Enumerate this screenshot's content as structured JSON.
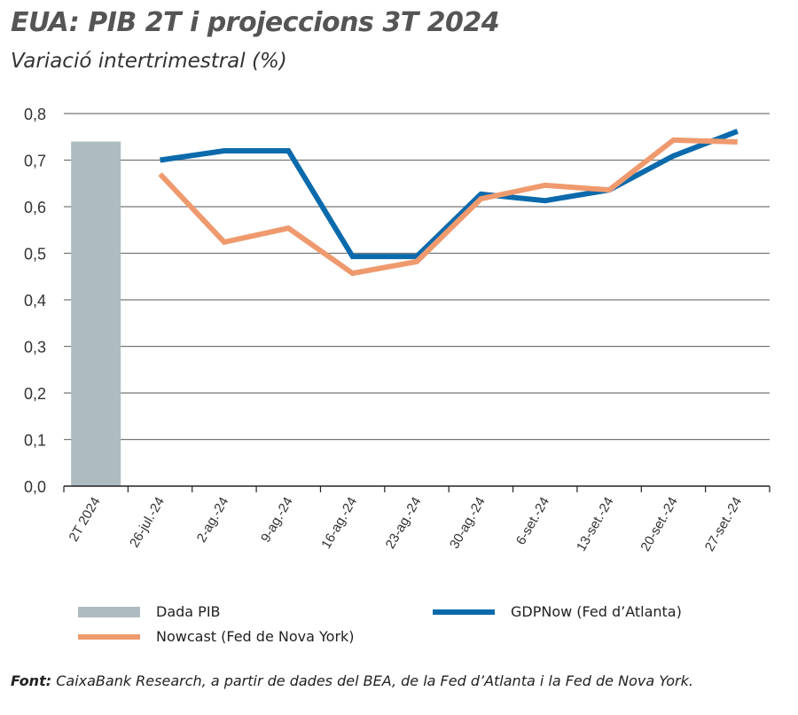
{
  "chart_data": {
    "type": "bar+line",
    "title": "EUA: PIB 2T i projeccions 3T 2024",
    "subtitle": "Variació intertrimestral (%)",
    "categories": [
      "2T 2024",
      "26-jul.-24",
      "2-ag.-24",
      "9-ag.-24",
      "16-ag.-24",
      "23-ag.-24",
      "30-ag.-24",
      "6-set.-24",
      "13-set.-24",
      "20-set.-24",
      "27-set.-24"
    ],
    "ylim": [
      0,
      0.8
    ],
    "yticks": [
      "0,0",
      "0,1",
      "0,2",
      "0,3",
      "0,4",
      "0,5",
      "0,6",
      "0,7",
      "0,8"
    ],
    "grid": true,
    "legend_position": "bottom",
    "series": [
      {
        "name": "Dada PIB",
        "kind": "bar",
        "color": "#aebbc1",
        "values": [
          0.74,
          null,
          null,
          null,
          null,
          null,
          null,
          null,
          null,
          null,
          null
        ]
      },
      {
        "name": "GDPNow (Fed d’Atlanta)",
        "kind": "line",
        "color": "#0b6aab",
        "values": [
          null,
          0.7,
          0.72,
          0.72,
          0.493,
          0.493,
          0.627,
          0.613,
          0.636,
          0.709,
          0.762
        ]
      },
      {
        "name": "Nowcast (Fed de Nova York)",
        "kind": "line",
        "color": "#ef9a6e",
        "values": [
          null,
          0.67,
          0.524,
          0.554,
          0.457,
          0.482,
          0.617,
          0.646,
          0.636,
          0.743,
          0.739
        ]
      }
    ]
  },
  "source": {
    "label": "Font:",
    "text": " CaixaBank Research, a partir de dades del BEA, de la Fed d’Atlanta i la Fed de Nova York."
  }
}
